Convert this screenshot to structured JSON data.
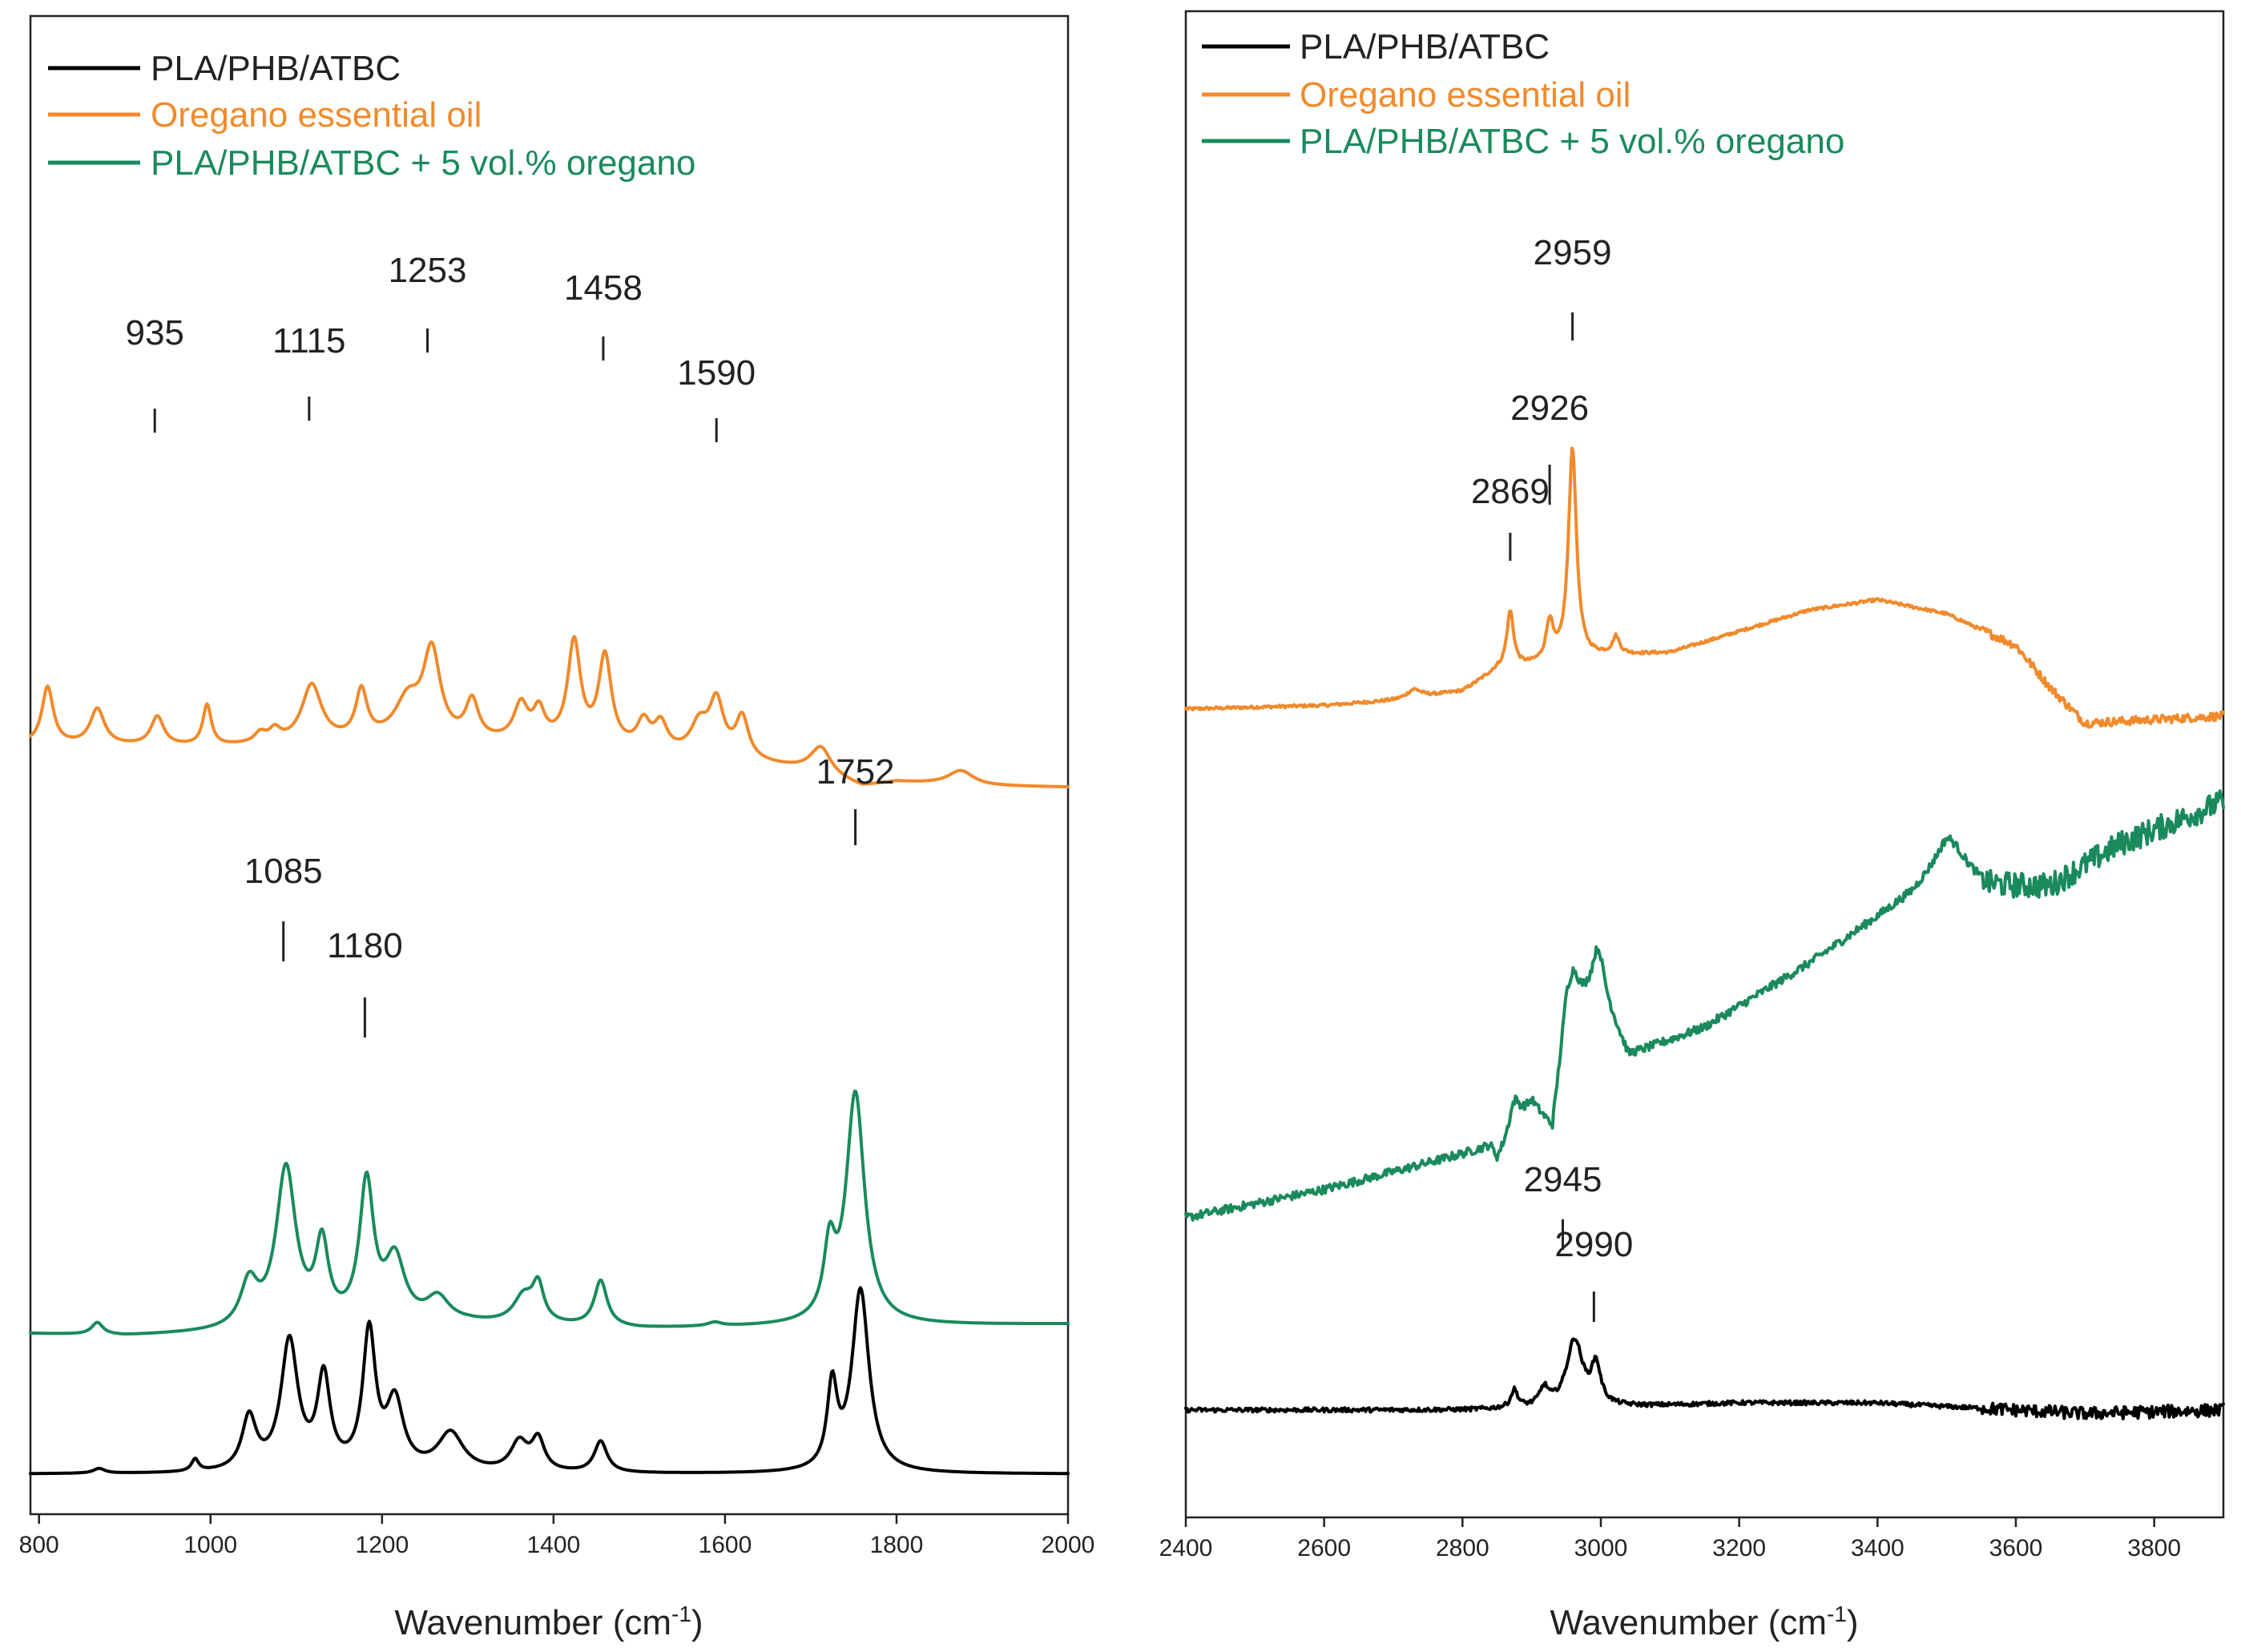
{
  "chart_data": [
    {
      "type": "line",
      "xlabel": "Wavenumber (cm",
      "xlabel_sup": "-1",
      "xlabel_close": ")",
      "xlim": [
        790,
        2000
      ],
      "xticks": [
        800,
        1000,
        1200,
        1400,
        1600,
        1800,
        2000
      ],
      "ylabel": "",
      "legend": [
        {
          "name": "PLA/PHB/ATBC",
          "color": "#000000"
        },
        {
          "name": "Oregano essential oil",
          "color": "#F08A2C"
        },
        {
          "name": "PLA/PHB/ATBC + 5 vol.% oregano",
          "color": "#1A8A5C"
        }
      ],
      "series": [
        {
          "name": "Oregano essential oil",
          "color": "#F08A2C",
          "baseline": [
            [
              790,
              0.0
            ],
            [
              1000,
              -0.05
            ],
            [
              1200,
              0.05
            ],
            [
              1400,
              0.0
            ],
            [
              1500,
              -0.15
            ],
            [
              1600,
              -0.3
            ],
            [
              1700,
              -0.55
            ],
            [
              1760,
              -0.88
            ],
            [
              1800,
              -0.78
            ],
            [
              1900,
              -0.86
            ],
            [
              2000,
              -0.88
            ]
          ],
          "peaks": [
            [
              810,
              1.2,
              8
            ],
            [
              868,
              0.75,
              10
            ],
            [
              938,
              0.6,
              9
            ],
            [
              996,
              0.85,
              6
            ],
            [
              1058,
              0.2,
              8
            ],
            [
              1075,
              0.25,
              8
            ],
            [
              1118,
              1.2,
              14
            ],
            [
              1176,
              1.0,
              8
            ],
            [
              1230,
              0.8,
              18
            ],
            [
              1258,
              1.8,
              12
            ],
            [
              1305,
              0.8,
              9
            ],
            [
              1362,
              0.75,
              10
            ],
            [
              1383,
              0.6,
              8
            ],
            [
              1424,
              2.1,
              9
            ],
            [
              1460,
              1.85,
              9
            ],
            [
              1505,
              0.55,
              9
            ],
            [
              1525,
              0.55,
              9
            ],
            [
              1570,
              0.6,
              12
            ],
            [
              1590,
              1.1,
              10
            ],
            [
              1620,
              0.85,
              9
            ],
            [
              1712,
              0.55,
              14
            ],
            [
              1875,
              0.3,
              18
            ]
          ]
        },
        {
          "name": "PLA/PHB/ATBC + 5 vol.% oregano",
          "color": "#1A8A5C",
          "baseline": [
            [
              790,
              0.0
            ],
            [
              900,
              -0.05
            ],
            [
              1000,
              0.0
            ],
            [
              1300,
              0.2
            ],
            [
              1500,
              0.1
            ],
            [
              1700,
              0.15
            ],
            [
              2000,
              0.2
            ]
          ],
          "peaks": [
            [
              868,
              0.25,
              8
            ],
            [
              1045,
              0.9,
              12
            ],
            [
              1088,
              3.3,
              14
            ],
            [
              1130,
              1.6,
              9
            ],
            [
              1182,
              2.9,
              10
            ],
            [
              1215,
              1.3,
              14
            ],
            [
              1265,
              0.5,
              16
            ],
            [
              1365,
              0.55,
              14
            ],
            [
              1382,
              0.75,
              8
            ],
            [
              1455,
              0.95,
              9
            ],
            [
              1588,
              0.08,
              10
            ],
            [
              1722,
              1.4,
              8
            ],
            [
              1752,
              4.8,
              13
            ]
          ]
        },
        {
          "name": "PLA/PHB/ATBC",
          "color": "#000000",
          "baseline": [
            [
              790,
              0.0
            ],
            [
              2000,
              0.0
            ]
          ],
          "peaks": [
            [
              870,
              0.1,
              8
            ],
            [
              982,
              0.25,
              5
            ],
            [
              1045,
              1.1,
              10
            ],
            [
              1092,
              2.7,
              12
            ],
            [
              1132,
              1.9,
              9
            ],
            [
              1185,
              2.85,
              9
            ],
            [
              1215,
              1.4,
              12
            ],
            [
              1280,
              0.8,
              18
            ],
            [
              1360,
              0.6,
              12
            ],
            [
              1382,
              0.65,
              9
            ],
            [
              1455,
              0.65,
              9
            ],
            [
              1725,
              1.7,
              7
            ],
            [
              1758,
              3.8,
              12
            ]
          ]
        }
      ],
      "annotations": [
        {
          "text": "935",
          "x": 935
        },
        {
          "text": "1115",
          "x": 1115
        },
        {
          "text": "1253",
          "x": 1253
        },
        {
          "text": "1458",
          "x": 1458
        },
        {
          "text": "1590",
          "x": 1590
        },
        {
          "text": "1752",
          "x": 1752
        },
        {
          "text": "1085",
          "x": 1085
        },
        {
          "text": "1180",
          "x": 1180
        }
      ]
    },
    {
      "type": "line",
      "xlabel": "Wavenumber (cm",
      "xlabel_sup": "-1",
      "xlabel_close": ")",
      "xlim": [
        2400,
        3900
      ],
      "xticks": [
        2400,
        2600,
        2800,
        3000,
        3200,
        3400,
        3600,
        3800
      ],
      "ylabel": "",
      "legend": [
        {
          "name": "PLA/PHB/ATBC",
          "color": "#000000"
        },
        {
          "name": "Oregano essential oil",
          "color": "#F08A2C"
        },
        {
          "name": "PLA/PHB/ATBC + 5 vol.% oregano",
          "color": "#1A8A5C"
        }
      ],
      "series": [
        {
          "name": "Oregano essential oil",
          "color": "#F08A2C",
          "noise": 0.02,
          "baseline": [
            [
              2400,
              0.0
            ],
            [
              2600,
              0.05
            ],
            [
              2700,
              0.12
            ],
            [
              2800,
              0.25
            ],
            [
              2850,
              0.55
            ],
            [
              3000,
              0.75
            ],
            [
              3100,
              0.8
            ],
            [
              3200,
              1.1
            ],
            [
              3300,
              1.4
            ],
            [
              3400,
              1.55
            ],
            [
              3500,
              1.35
            ],
            [
              3600,
              0.9
            ],
            [
              3650,
              0.3
            ],
            [
              3700,
              -0.2
            ],
            [
              3800,
              -0.15
            ],
            [
              3900,
              -0.1
            ]
          ],
          "peaks": [
            [
              2730,
              0.12,
              12
            ],
            [
              2869,
              0.8,
              6
            ],
            [
              2926,
              0.55,
              6
            ],
            [
              2959,
              3.0,
              7
            ],
            [
              3022,
              0.25,
              6
            ]
          ]
        },
        {
          "name": "PLA/PHB/ATBC + 5 vol.% oregano",
          "color": "#1A8A5C",
          "noise": 0.06,
          "baseline": [
            [
              2400,
              0.0
            ],
            [
              2600,
              0.4
            ],
            [
              2800,
              0.9
            ],
            [
              2840,
              1.0
            ],
            [
              2850,
              0.8
            ],
            [
              2900,
              1.6
            ],
            [
              2930,
              1.25
            ],
            [
              2950,
              2.9
            ],
            [
              3000,
              3.2
            ],
            [
              3040,
              2.3
            ],
            [
              3150,
              2.7
            ],
            [
              3300,
              3.6
            ],
            [
              3450,
              4.6
            ],
            [
              3500,
              5.1
            ],
            [
              3560,
              4.7
            ],
            [
              3650,
              4.7
            ],
            [
              3750,
              5.3
            ],
            [
              3900,
              5.9
            ]
          ],
          "peaks": [
            [
              2875,
              0.45,
              10
            ],
            [
              2960,
              0.5,
              10
            ],
            [
              2995,
              0.6,
              10
            ],
            [
              3505,
              0.3,
              25
            ]
          ]
        },
        {
          "name": "PLA/PHB/ATBC",
          "color": "#000000",
          "noise": 0.03,
          "baseline": [
            [
              2400,
              0.0
            ],
            [
              2800,
              0.0
            ],
            [
              3050,
              0.05
            ],
            [
              3200,
              0.1
            ],
            [
              3400,
              0.1
            ],
            [
              3600,
              0.0
            ],
            [
              3700,
              -0.05
            ],
            [
              3900,
              0.0
            ]
          ],
          "peaks": [
            [
              2875,
              0.25,
              6
            ],
            [
              2918,
              0.25,
              8
            ],
            [
              2962,
              0.95,
              14
            ],
            [
              2993,
              0.55,
              8
            ]
          ]
        }
      ],
      "annotations": [
        {
          "text": "2959",
          "x": 2959
        },
        {
          "text": "2926",
          "x": 2926
        },
        {
          "text": "2869",
          "x": 2869
        },
        {
          "text": "2945",
          "x": 2945
        },
        {
          "text": "2990",
          "x": 2990
        }
      ]
    }
  ]
}
